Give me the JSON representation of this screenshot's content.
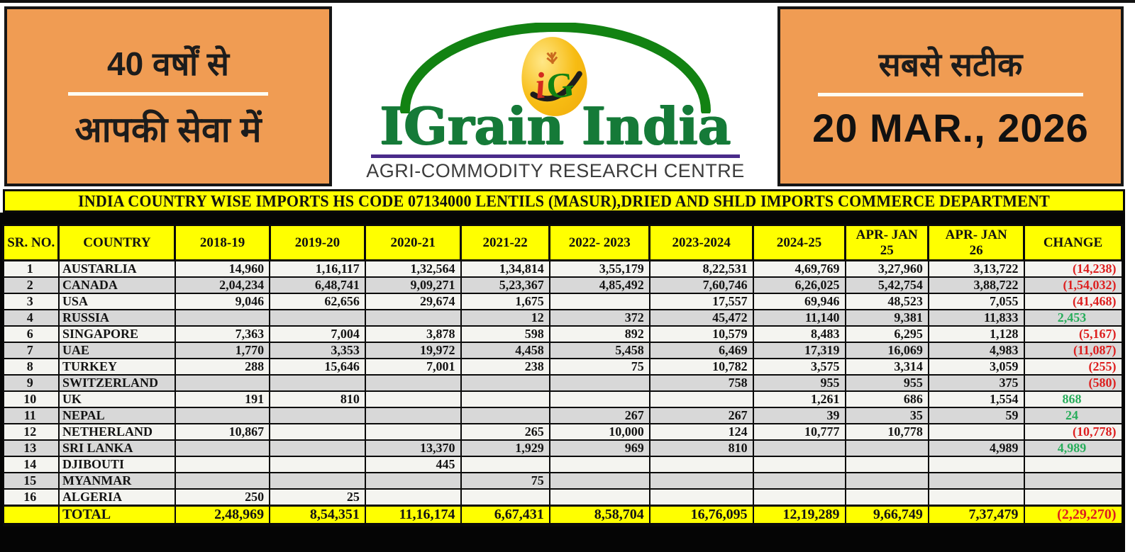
{
  "banner": {
    "left": {
      "line1": "40 वर्षों से",
      "line2": "आपकी सेवा में"
    },
    "logo": {
      "monogram": "iG",
      "brand": "IGrain India",
      "subtitle": "AGRI-COMMODITY RESEARCH CENTRE"
    },
    "right": {
      "tagline": "सबसे सटीक",
      "date": "20 MAR., 2026"
    }
  },
  "title_bar": {
    "text": "INDIA COUNTRY WISE IMPORTS HS CODE 07134000 LENTILS (MASUR),DRIED AND SHLD IMPORTS COMMERCE DEPARTMENT"
  },
  "colors": {
    "orange": "#F09C53",
    "yellow": "#FFFF00",
    "brand_green": "#157A38",
    "arc_green": "#128212",
    "purple_rule": "#4A2B8A",
    "negative_red": "#DD1F1F",
    "positive_green": "#28AD5B",
    "row_gray": "#D8D8D8",
    "row_white": "#F4F4F0"
  },
  "table": {
    "headers": [
      "SR. NO.",
      "COUNTRY",
      "2018-19",
      "2019-20",
      "2020-21",
      "2021-22",
      "2022- 2023",
      "2023-2024",
      "2024-25",
      "APR- JAN\n25",
      "APR- JAN\n26",
      "CHANGE"
    ],
    "rows": [
      [
        "1",
        "AUSTARLIA",
        "14,960",
        "1,16,117",
        "1,32,564",
        "1,34,814",
        "3,55,179",
        "8,22,531",
        "4,69,769",
        "3,27,960",
        "3,13,722",
        "(14,238)"
      ],
      [
        "2",
        "CANADA",
        "2,04,234",
        "6,48,741",
        "9,09,271",
        "5,23,367",
        "4,85,492",
        "7,60,746",
        "6,26,025",
        "5,42,754",
        "3,88,722",
        "(1,54,032)"
      ],
      [
        "3",
        "USA",
        "9,046",
        "62,656",
        "29,674",
        "1,675",
        "",
        "17,557",
        "69,946",
        "48,523",
        "7,055",
        "(41,468)"
      ],
      [
        "4",
        "RUSSIA",
        "",
        "",
        "",
        "12",
        "372",
        "45,472",
        "11,140",
        "9,381",
        "11,833",
        "2,453"
      ],
      [
        "6",
        "SINGAPORE",
        "7,363",
        "7,004",
        "3,878",
        "598",
        "892",
        "10,579",
        "8,483",
        "6,295",
        "1,128",
        "(5,167)"
      ],
      [
        "7",
        "UAE",
        "1,770",
        "3,353",
        "19,972",
        "4,458",
        "5,458",
        "6,469",
        "17,319",
        "16,069",
        "4,983",
        "(11,087)"
      ],
      [
        "8",
        "TURKEY",
        "288",
        "15,646",
        "7,001",
        "238",
        "75",
        "10,782",
        "3,575",
        "3,314",
        "3,059",
        "(255)"
      ],
      [
        "9",
        "SWITZERLAND",
        "",
        "",
        "",
        "",
        "",
        "758",
        "955",
        "955",
        "375",
        "(580)"
      ],
      [
        "10",
        "UK",
        "191",
        "810",
        "",
        "",
        "",
        "",
        "1,261",
        "686",
        "1,554",
        "868"
      ],
      [
        "11",
        "NEPAL",
        "",
        "",
        "",
        "",
        "267",
        "267",
        "39",
        "35",
        "59",
        "24"
      ],
      [
        "12",
        "NETHERLAND",
        "10,867",
        "",
        "",
        "265",
        "10,000",
        "124",
        "10,777",
        "10,778",
        "",
        "(10,778)"
      ],
      [
        "13",
        "SRI LANKA",
        "",
        "",
        "13,370",
        "1,929",
        "969",
        "810",
        "",
        "",
        "4,989",
        "4,989"
      ],
      [
        "14",
        "DJIBOUTI",
        "",
        "",
        "445",
        "",
        "",
        "",
        "",
        "",
        "",
        ""
      ],
      [
        "15",
        "MYANMAR",
        "",
        "",
        "",
        "75",
        "",
        "",
        "",
        "",
        "",
        ""
      ],
      [
        "16",
        "ALGERIA",
        "250",
        "25",
        "",
        "",
        "",
        "",
        "",
        "",
        "",
        ""
      ]
    ],
    "total": [
      "",
      "TOTAL",
      "2,48,969",
      "8,54,351",
      "11,16,174",
      "6,67,431",
      "8,58,704",
      "16,76,095",
      "12,19,289",
      "9,66,749",
      "7,37,479",
      "(2,29,270)"
    ]
  }
}
